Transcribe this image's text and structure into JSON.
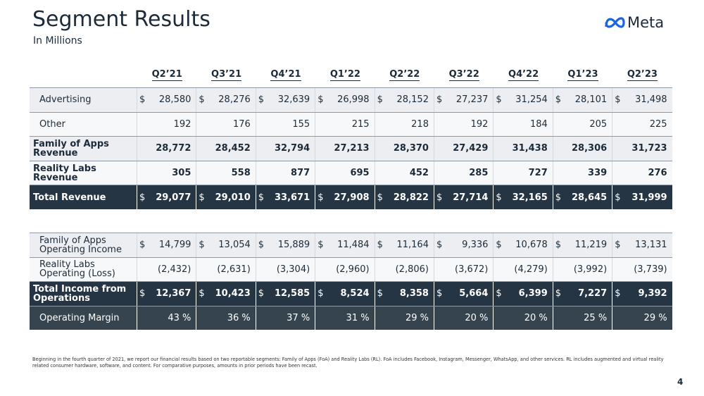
{
  "header": {
    "title": "Segment Results",
    "subtitle": "In Millions",
    "logo": "Meta"
  },
  "columns": [
    "Q2’21",
    "Q3’21",
    "Q4’21",
    "Q1’22",
    "Q2’22",
    "Q3’22",
    "Q4’22",
    "Q1’23",
    "Q2’23"
  ],
  "tables": [
    {
      "rows": [
        {
          "label": [
            "Advertising"
          ],
          "style": "normal",
          "prefix": "$",
          "cells": [
            "28,580",
            "28,276",
            "32,639",
            "26,998",
            "28,152",
            "27,237",
            "31,254",
            "28,101",
            "31,498"
          ]
        },
        {
          "label": [
            "Other"
          ],
          "style": "normal",
          "cells": [
            "192",
            "176",
            "155",
            "215",
            "218",
            "192",
            "184",
            "205",
            "225"
          ]
        },
        {
          "label": [
            "Family of Apps",
            "Revenue"
          ],
          "style": "bold",
          "cells": [
            "28,772",
            "28,452",
            "32,794",
            "27,213",
            "28,370",
            "27,429",
            "31,438",
            "28,306",
            "31,723"
          ]
        },
        {
          "label": [
            "Reality Labs Revenue"
          ],
          "style": "bold",
          "cells": [
            "305",
            "558",
            "877",
            "695",
            "452",
            "285",
            "727",
            "339",
            "276"
          ]
        },
        {
          "label": [
            "Total Revenue"
          ],
          "style": "total",
          "prefix": "$",
          "cells": [
            "29,077",
            "29,010",
            "33,671",
            "27,908",
            "28,822",
            "27,714",
            "32,165",
            "28,645",
            "31,999"
          ]
        }
      ]
    },
    {
      "rows": [
        {
          "label": [
            "Family of Apps",
            "Operating Income"
          ],
          "style": "normal",
          "prefix": "$",
          "cells": [
            "14,799",
            "13,054",
            "15,889",
            "11,484",
            "11,164",
            "9,336",
            "10,678",
            "11,219",
            "13,131"
          ]
        },
        {
          "label": [
            "Reality Labs",
            "Operating (Loss)"
          ],
          "style": "normal",
          "cells": [
            "(2,432)",
            "(2,631)",
            "(3,304)",
            "(2,960)",
            "(2,806)",
            "(3,672)",
            "(4,279)",
            "(3,992)",
            "(3,739)"
          ]
        },
        {
          "label": [
            "Total Income from",
            "Operations"
          ],
          "style": "total",
          "prefix": "$",
          "cells": [
            "12,367",
            "10,423",
            "12,585",
            "8,524",
            "8,358",
            "5,664",
            "6,399",
            "7,227",
            "9,392"
          ]
        },
        {
          "label": [
            "Operating Margin"
          ],
          "style": "margin",
          "cells": [
            "43 %",
            "36 %",
            "37 %",
            "31 %",
            "29 %",
            "20 %",
            "20 %",
            "25 %",
            "29 %"
          ]
        }
      ]
    }
  ],
  "footnote": "Beginning in the fourth quarter of 2021, we report our financial results based on two reportable segments: Family of Apps (FoA) and Reality Labs (RL). FoA includes Facebook, Instagram, Messenger, WhatsApp, and other services. RL includes augmented and virtual reality related consumer hardware, software, and content. For comparative purposes, amounts in prior periods have been recast.",
  "page_number": "4"
}
